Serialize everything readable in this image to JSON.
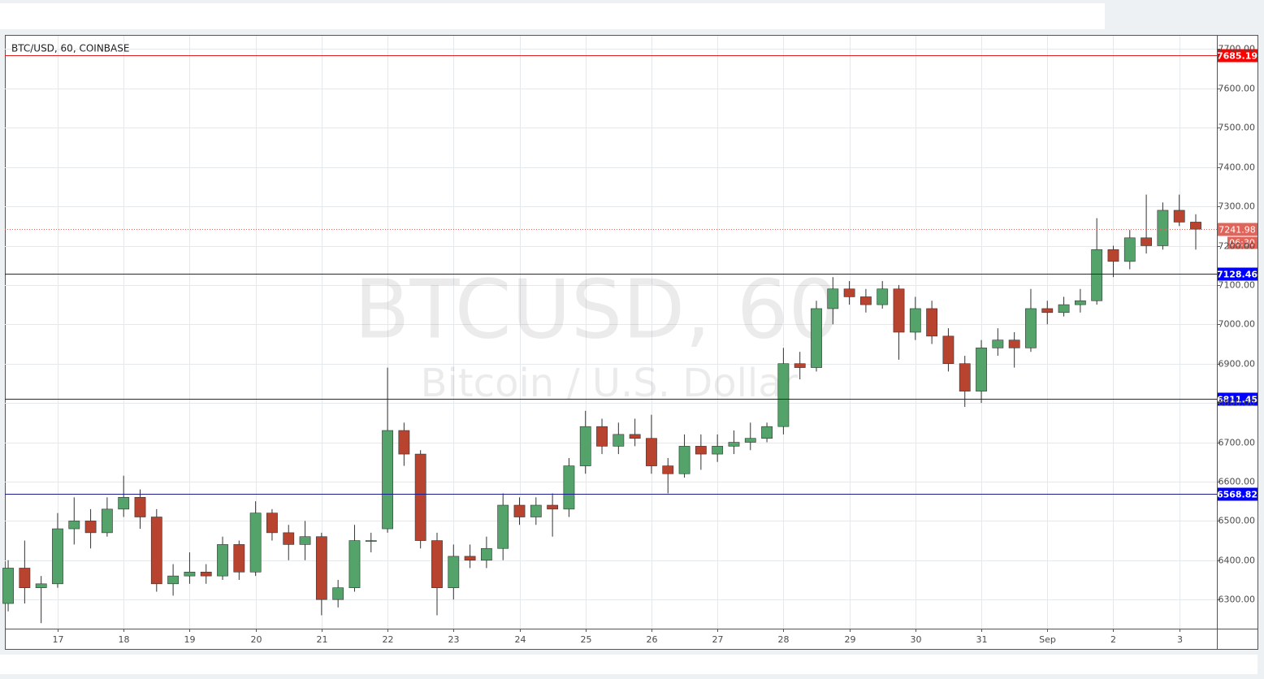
{
  "chart_data": {
    "type": "candlestick",
    "title": "BTC/USD, 60, COINBASE",
    "watermark": "BTCUSD, 60",
    "watermark_subtitle": "Bitcoin / U.S. Dollar",
    "up_color": "#53a36a",
    "down_color": "#b8432f",
    "grid": true,
    "xlim": [
      16.2,
      34.57
    ],
    "ylim": [
      6226,
      7734
    ],
    "xticks": [
      17,
      18,
      19,
      20,
      21,
      22,
      23,
      24,
      25,
      26,
      27,
      28,
      29,
      30,
      31,
      {
        "value": 32,
        "label": "Sep"
      },
      {
        "value": 33,
        "label": "2"
      },
      {
        "value": 34,
        "label": "3"
      }
    ],
    "yticks": [
      {
        "value": 6300,
        "label": "6300.00"
      },
      {
        "value": 6400,
        "label": "6400.00"
      },
      {
        "value": 6500,
        "label": "6500.00"
      },
      {
        "value": 6600,
        "label": "6600.00"
      },
      {
        "value": 6700,
        "label": "6700.00"
      },
      {
        "value": 6800,
        "label": "6800.00"
      },
      {
        "value": 6900,
        "label": "6900.00"
      },
      {
        "value": 7000,
        "label": "7000.00"
      },
      {
        "value": 7100,
        "label": "7100.00"
      },
      {
        "value": 7200,
        "label": "7200.00"
      },
      {
        "value": 7300,
        "label": "7300.00"
      },
      {
        "value": 7400,
        "label": "7400.00"
      },
      {
        "value": 7500,
        "label": "7500.00"
      },
      {
        "value": 7600,
        "label": "7600.00"
      },
      {
        "value": 7700,
        "label": "7700.00"
      }
    ],
    "x": [
      16.25,
      16.5,
      16.75,
      17,
      17.25,
      17.5,
      17.75,
      18,
      18.25,
      18.5,
      18.75,
      19,
      19.25,
      19.5,
      19.75,
      20,
      20.25,
      20.5,
      20.75,
      21,
      21.25,
      21.5,
      21.75,
      22,
      22.25,
      22.5,
      22.75,
      23,
      23.25,
      23.5,
      23.75,
      24,
      24.25,
      24.5,
      24.75,
      25,
      25.25,
      25.5,
      25.75,
      26,
      26.25,
      26.5,
      26.75,
      27,
      27.25,
      27.5,
      27.75,
      28,
      28.25,
      28.5,
      28.75,
      29,
      29.25,
      29.5,
      29.75,
      30,
      30.25,
      30.5,
      30.75,
      31,
      31.25,
      31.5,
      31.75,
      32,
      32.25,
      32.5,
      32.75,
      33,
      33.25,
      33.5,
      33.75,
      34,
      34.25
    ],
    "open": [
      6290,
      6380,
      6330,
      6340,
      6480,
      6500,
      6470,
      6530,
      6560,
      6510,
      6340,
      6360,
      6370,
      6360,
      6440,
      6370,
      6520,
      6470,
      6440,
      6460,
      6300,
      6330,
      6450,
      6480,
      6730,
      6670,
      6450,
      6330,
      6410,
      6400,
      6430,
      6540,
      6510,
      6540,
      6530,
      6640,
      6740,
      6690,
      6720,
      6710,
      6640,
      6620,
      6690,
      6670,
      6690,
      6700,
      6710,
      6740,
      6900,
      6890,
      7040,
      7090,
      7070,
      7050,
      7090,
      6980,
      7040,
      6970,
      6900,
      6830,
      6940,
      6960,
      6940,
      7040,
      7030,
      7050,
      7060,
      7190,
      7160,
      7220,
      7200,
      7290,
      7260
    ],
    "high": [
      6400,
      6450,
      6360,
      6520,
      6560,
      6530,
      6560,
      6615,
      6580,
      6530,
      6390,
      6420,
      6390,
      6460,
      6450,
      6550,
      6530,
      6490,
      6500,
      6470,
      6350,
      6490,
      6470,
      6890,
      6750,
      6680,
      6470,
      6440,
      6440,
      6460,
      6570,
      6560,
      6560,
      6570,
      6660,
      6780,
      6760,
      6750,
      6760,
      6770,
      6660,
      6720,
      6720,
      6720,
      6730,
      6750,
      6750,
      6940,
      6930,
      7060,
      7120,
      7110,
      7090,
      7110,
      7100,
      7070,
      7060,
      6990,
      6920,
      6960,
      6990,
      6980,
      7090,
      7060,
      7070,
      7090,
      7270,
      7200,
      7240,
      7330,
      7310,
      7330,
      7280
    ],
    "low": [
      6270,
      6290,
      6240,
      6330,
      6440,
      6430,
      6460,
      6510,
      6480,
      6320,
      6310,
      6340,
      6340,
      6350,
      6350,
      6360,
      6450,
      6400,
      6400,
      6260,
      6280,
      6320,
      6420,
      6470,
      6640,
      6430,
      6260,
      6300,
      6380,
      6380,
      6400,
      6490,
      6490,
      6460,
      6510,
      6620,
      6670,
      6670,
      6690,
      6620,
      6570,
      6610,
      6630,
      6650,
      6670,
      6680,
      6700,
      6720,
      6860,
      6880,
      7000,
      7050,
      7030,
      7040,
      6910,
      6960,
      6950,
      6880,
      6790,
      6800,
      6920,
      6890,
      6930,
      7000,
      7020,
      7030,
      7050,
      7120,
      7140,
      7180,
      7190,
      7250,
      7190
    ],
    "close": [
      6380,
      6330,
      6340,
      6480,
      6500,
      6470,
      6530,
      6560,
      6510,
      6340,
      6360,
      6370,
      6360,
      6440,
      6370,
      6520,
      6470,
      6440,
      6460,
      6300,
      6330,
      6450,
      6450,
      6730,
      6670,
      6450,
      6330,
      6410,
      6400,
      6430,
      6540,
      6510,
      6540,
      6530,
      6640,
      6740,
      6690,
      6720,
      6710,
      6640,
      6620,
      6690,
      6670,
      6690,
      6700,
      6710,
      6740,
      6900,
      6890,
      7040,
      7090,
      7070,
      7050,
      7090,
      6980,
      7040,
      6970,
      6900,
      6830,
      6940,
      6960,
      6940,
      7040,
      7030,
      7050,
      7060,
      7190,
      7160,
      7220,
      7200,
      7290,
      7260,
      7241.98
    ],
    "levels": [
      {
        "value": 7685.19,
        "color": "#ff0000"
      },
      {
        "value": 7128.46,
        "color": "#0000ff"
      },
      {
        "value": 6811.45,
        "color": "#0000ff"
      },
      {
        "value": 6568.82,
        "color": "#0000ff"
      }
    ],
    "last_price": 7241.98,
    "last_price_color": "#e0645a",
    "countdown": "06:30"
  }
}
